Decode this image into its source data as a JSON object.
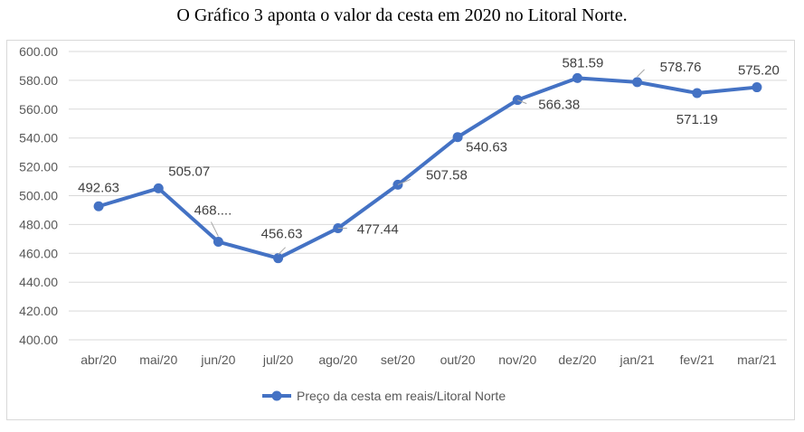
{
  "caption": "O Gráfico 3 aponta o valor da cesta em 2020 no Litoral Norte.",
  "chart_data": {
    "type": "line",
    "categories": [
      "abr/20",
      "mai/20",
      "jun/20",
      "jul/20",
      "ago/20",
      "set/20",
      "out/20",
      "nov/20",
      "dez/20",
      "jan/21",
      "fev/21",
      "mar/21"
    ],
    "series": [
      {
        "name": "Preço da cesta em reais/Litoral Norte",
        "values": [
          492.63,
          505.07,
          468.0,
          456.63,
          477.44,
          507.58,
          540.63,
          566.38,
          581.59,
          578.76,
          571.19,
          575.2
        ],
        "data_labels": [
          "492.63",
          "505.07",
          "468....",
          "456.63",
          "477.44",
          "507.58",
          "540.63",
          "566.38",
          "581.59",
          "578.76",
          "571.19",
          "575.20"
        ],
        "color": "#4472c4"
      }
    ],
    "ylim": [
      400,
      600
    ],
    "yticks": [
      "400.00",
      "420.00",
      "440.00",
      "460.00",
      "480.00",
      "500.00",
      "520.00",
      "540.00",
      "560.00",
      "580.00",
      "600.00"
    ],
    "grid": true,
    "legend": "bottom"
  }
}
